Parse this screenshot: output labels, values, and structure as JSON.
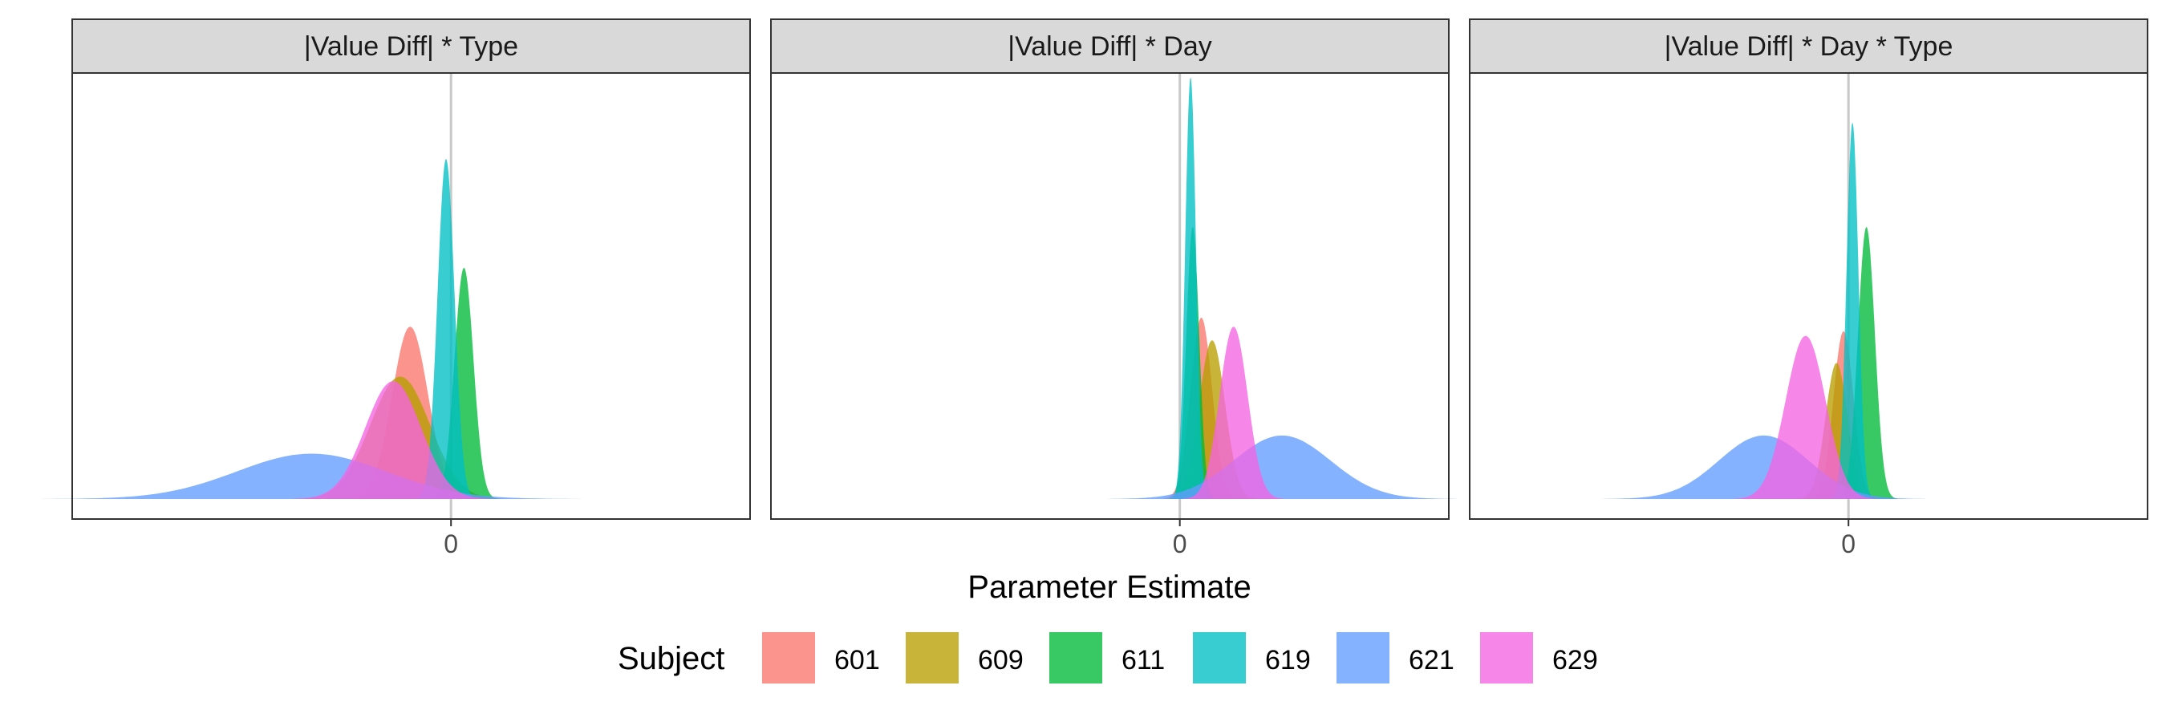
{
  "chart_data": {
    "type": "area",
    "xlabel": "Parameter Estimate",
    "legend": {
      "title": "Subject",
      "position": "bottom"
    },
    "colors": {
      "601": "#F8766D",
      "609": "#B79F00",
      "611": "#00BA38",
      "619": "#00BFC4",
      "621": "#619CFF",
      "629": "#F564E3"
    },
    "series_names": [
      "601",
      "609",
      "611",
      "619",
      "621",
      "629"
    ],
    "reference_line": 0,
    "x_ticks": [
      0
    ],
    "grid": false,
    "panels": [
      {
        "title": "|Value Diff| * Type",
        "xlim": [
          -0.38,
          0.3
        ],
        "series": [
          {
            "name": "601",
            "mean": -0.041,
            "sd": 0.018,
            "peak": 0.38
          },
          {
            "name": "609",
            "mean": -0.051,
            "sd": 0.03,
            "peak": 0.27
          },
          {
            "name": "611",
            "mean": 0.013,
            "sd": 0.0095,
            "peak": 0.51
          },
          {
            "name": "619",
            "mean": -0.005,
            "sd": 0.0085,
            "peak": 0.75
          },
          {
            "name": "621",
            "mean": -0.14,
            "sd": 0.075,
            "peak": 0.1
          },
          {
            "name": "629",
            "mean": -0.058,
            "sd": 0.028,
            "peak": 0.26
          }
        ]
      },
      {
        "title": "|Value Diff| * Day",
        "xlim": [
          -0.38,
          0.25
        ],
        "series": [
          {
            "name": "601",
            "mean": 0.02,
            "sd": 0.01,
            "peak": 0.4
          },
          {
            "name": "609",
            "mean": 0.03,
            "sd": 0.012,
            "peak": 0.35
          },
          {
            "name": "611",
            "mean": 0.012,
            "sd": 0.006,
            "peak": 0.6
          },
          {
            "name": "619",
            "mean": 0.01,
            "sd": 0.005,
            "peak": 0.93
          },
          {
            "name": "621",
            "mean": 0.095,
            "sd": 0.045,
            "peak": 0.14
          },
          {
            "name": "629",
            "mean": 0.05,
            "sd": 0.013,
            "peak": 0.38
          }
        ]
      },
      {
        "title": "|Value Diff| * Day * Type",
        "xlim": [
          -0.38,
          0.3
        ],
        "series": [
          {
            "name": "601",
            "mean": -0.005,
            "sd": 0.01,
            "peak": 0.37
          },
          {
            "name": "609",
            "mean": -0.012,
            "sd": 0.011,
            "peak": 0.3
          },
          {
            "name": "611",
            "mean": 0.018,
            "sd": 0.0085,
            "peak": 0.6
          },
          {
            "name": "619",
            "mean": 0.004,
            "sd": 0.006,
            "peak": 0.83
          },
          {
            "name": "621",
            "mean": -0.085,
            "sd": 0.045,
            "peak": 0.14
          },
          {
            "name": "629",
            "mean": -0.043,
            "sd": 0.02,
            "peak": 0.36
          }
        ]
      }
    ]
  }
}
